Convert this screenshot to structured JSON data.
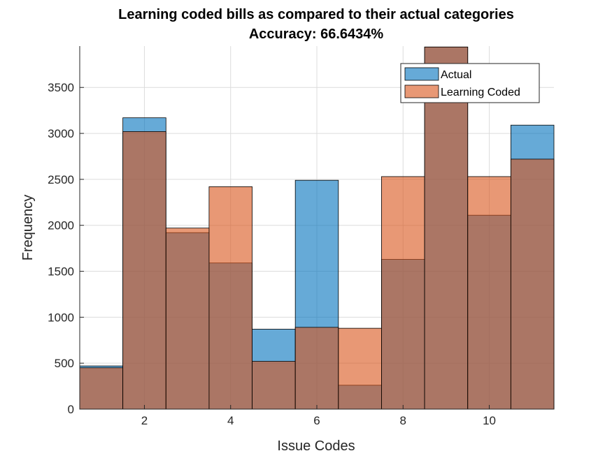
{
  "chart_data": {
    "type": "bar",
    "title": [
      "Learning coded bills as compared to their actual categories",
      "Accuracy: 66.6434%"
    ],
    "xlabel": "Issue Codes",
    "ylabel": "Frequency",
    "xlim": [
      0.5,
      11.5
    ],
    "ylim": [
      0,
      3950
    ],
    "x_ticks": [
      2,
      4,
      6,
      8,
      10
    ],
    "y_ticks": [
      0,
      500,
      1000,
      1500,
      2000,
      2500,
      3000,
      3500
    ],
    "grid": true,
    "legend_location": "top-right",
    "bin_edges": [
      0.5,
      1.5,
      2.5,
      3.5,
      4.5,
      5.5,
      6.5,
      7.5,
      8.5,
      9.5,
      10.5,
      11.5
    ],
    "series": [
      {
        "name": "Actual",
        "color": "#0072BD",
        "values": [
          470,
          3170,
          1920,
          1590,
          870,
          2490,
          260,
          1630,
          3940,
          2110,
          3090
        ]
      },
      {
        "name": "Learning Coded",
        "color": "#D95319",
        "values": [
          450,
          3020,
          1970,
          2420,
          520,
          890,
          880,
          2530,
          3940,
          2530,
          2720
        ]
      }
    ]
  }
}
